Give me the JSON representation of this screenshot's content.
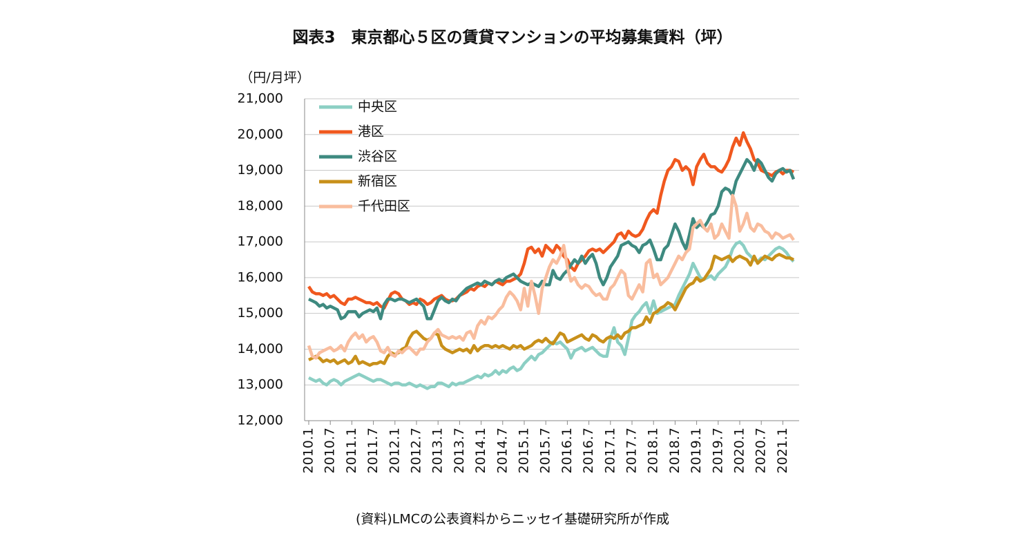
{
  "chart_data": {
    "type": "line",
    "title": "図表3　東京都心５区の賃貸マンションの平均募集賃料（坪）",
    "y_label": "（円/月坪）",
    "source": "(資料)LMCの公表資料からニッセイ基礎研究所が作成",
    "categories": [
      "2010.1",
      null,
      null,
      null,
      null,
      null,
      "2010.7",
      null,
      null,
      null,
      null,
      null,
      "2011.1",
      null,
      null,
      null,
      null,
      null,
      "2011.7",
      null,
      null,
      null,
      null,
      null,
      "2012.1",
      null,
      null,
      null,
      null,
      null,
      "2012.7",
      null,
      null,
      null,
      null,
      null,
      "2013.1",
      null,
      null,
      null,
      null,
      null,
      "2013.7",
      null,
      null,
      null,
      null,
      null,
      "2014.1",
      null,
      null,
      null,
      null,
      null,
      "2014.7",
      null,
      null,
      null,
      null,
      null,
      "2015.1",
      null,
      null,
      null,
      null,
      null,
      "2015.7",
      null,
      null,
      null,
      null,
      null,
      "2016.1",
      null,
      null,
      null,
      null,
      null,
      "2016.7",
      null,
      null,
      null,
      null,
      null,
      "2017.1",
      null,
      null,
      null,
      null,
      null,
      "2017.7",
      null,
      null,
      null,
      null,
      null,
      "2018.1",
      null,
      null,
      null,
      null,
      null,
      "2018.7",
      null,
      null,
      null,
      null,
      null,
      "2019.1",
      null,
      null,
      null,
      null,
      null,
      "2019.7",
      null,
      null,
      null,
      null,
      null,
      "2020.1",
      null,
      null,
      null,
      null,
      null,
      "2020.7",
      null,
      null,
      null,
      null,
      null,
      "2021.1",
      null,
      null,
      null
    ],
    "series": [
      {
        "name": "中央区",
        "color": "#8ccfc4",
        "values": [
          13200,
          13150,
          13100,
          13150,
          13050,
          13000,
          13100,
          13150,
          13100,
          13000,
          13100,
          13150,
          13200,
          13250,
          13300,
          13250,
          13200,
          13150,
          13100,
          13150,
          13150,
          13100,
          13050,
          13000,
          13050,
          13050,
          13000,
          13000,
          13050,
          13000,
          12950,
          13000,
          12950,
          12900,
          12950,
          12950,
          13050,
          13050,
          13000,
          12950,
          13050,
          13000,
          13050,
          13050,
          13100,
          13150,
          13200,
          13250,
          13200,
          13300,
          13250,
          13300,
          13400,
          13300,
          13400,
          13350,
          13450,
          13500,
          13400,
          13450,
          13600,
          13700,
          13800,
          13700,
          13850,
          13900,
          14000,
          14100,
          14200,
          14150,
          14200,
          14100,
          14000,
          13750,
          13950,
          14000,
          14050,
          13950,
          14000,
          14050,
          13950,
          13850,
          13800,
          13800,
          14300,
          14600,
          14200,
          14100,
          13850,
          14300,
          14800,
          14950,
          15050,
          15200,
          15300,
          15000,
          15350,
          15000,
          15050,
          15100,
          15150,
          15200,
          15250,
          15500,
          15700,
          15900,
          16100,
          16400,
          16200,
          16000,
          15950,
          16000,
          16050,
          15950,
          16100,
          16200,
          16300,
          16500,
          16800,
          16950,
          17000,
          16900,
          16700,
          16600,
          16500,
          16450,
          16550,
          16500,
          16600,
          16700,
          16800,
          16850,
          16800,
          16700,
          16550,
          16450
        ]
      },
      {
        "name": "港区",
        "color": "#f0581e",
        "values": [
          15750,
          15600,
          15550,
          15550,
          15500,
          15550,
          15450,
          15500,
          15400,
          15300,
          15250,
          15400,
          15400,
          15450,
          15400,
          15350,
          15300,
          15300,
          15250,
          15300,
          15200,
          15150,
          15350,
          15550,
          15600,
          15550,
          15400,
          15350,
          15250,
          15300,
          15250,
          15400,
          15350,
          15250,
          15300,
          15400,
          15450,
          15500,
          15400,
          15350,
          15350,
          15400,
          15500,
          15550,
          15600,
          15700,
          15650,
          15750,
          15800,
          15750,
          15850,
          15800,
          15900,
          15850,
          15800,
          15900,
          15900,
          15950,
          16000,
          16100,
          16400,
          16800,
          16850,
          16700,
          16800,
          16600,
          16900,
          16800,
          16700,
          16900,
          16800,
          16600,
          16500,
          16300,
          16200,
          16400,
          16500,
          16600,
          16750,
          16800,
          16750,
          16800,
          16700,
          16800,
          16900,
          17000,
          17200,
          17250,
          17100,
          17300,
          17200,
          17150,
          17200,
          17350,
          17600,
          17800,
          17900,
          17800,
          18300,
          18700,
          19000,
          19100,
          19300,
          19250,
          19000,
          19100,
          19000,
          18600,
          19100,
          19300,
          19450,
          19200,
          19100,
          19100,
          19000,
          18950,
          19100,
          19300,
          19650,
          19900,
          19700,
          20050,
          19800,
          19600,
          19300,
          19200,
          19000,
          18950,
          18900,
          18850,
          18950,
          19000,
          18900,
          19000,
          19000,
          18950
        ]
      },
      {
        "name": "渋谷区",
        "color": "#3e8a80",
        "values": [
          15400,
          15350,
          15300,
          15200,
          15250,
          15150,
          15200,
          15150,
          15100,
          14850,
          14900,
          15050,
          15050,
          15050,
          14900,
          15000,
          15050,
          15100,
          15050,
          15150,
          14850,
          15250,
          15400,
          15400,
          15350,
          15400,
          15400,
          15350,
          15300,
          15350,
          15400,
          15300,
          15200,
          14850,
          14850,
          15100,
          15350,
          15450,
          15350,
          15300,
          15400,
          15350,
          15500,
          15600,
          15700,
          15750,
          15800,
          15850,
          15800,
          15900,
          15850,
          15800,
          15900,
          15950,
          15900,
          16000,
          16050,
          16100,
          16000,
          15900,
          15850,
          15800,
          15850,
          15800,
          15750,
          15900,
          15800,
          15800,
          16200,
          16000,
          15950,
          16100,
          16200,
          16350,
          16500,
          16400,
          16600,
          16400,
          16550,
          16650,
          16400,
          16000,
          15800,
          16000,
          16300,
          16450,
          16600,
          16900,
          16950,
          17000,
          16900,
          16850,
          16700,
          16900,
          16950,
          17050,
          16800,
          16500,
          16500,
          16800,
          16900,
          17200,
          17500,
          17300,
          17000,
          16800,
          17200,
          17650,
          17400,
          17500,
          17400,
          17550,
          17750,
          17800,
          18000,
          18400,
          18500,
          18450,
          18300,
          18700,
          18900,
          19100,
          19300,
          19200,
          19000,
          19300,
          19200,
          19000,
          18800,
          18700,
          18900,
          19000,
          19050,
          18950,
          19000,
          18750
        ]
      },
      {
        "name": "新宿区",
        "color": "#c8901a",
        "values": [
          13700,
          13750,
          13800,
          13750,
          13650,
          13700,
          13650,
          13700,
          13600,
          13650,
          13700,
          13600,
          13650,
          13800,
          13600,
          13650,
          13600,
          13550,
          13600,
          13600,
          13650,
          13600,
          13800,
          13900,
          13850,
          13900,
          14000,
          14050,
          14300,
          14450,
          14500,
          14400,
          14300,
          14250,
          14300,
          14450,
          14400,
          14100,
          14000,
          13950,
          13900,
          13950,
          14000,
          13950,
          14000,
          13900,
          14100,
          13950,
          14050,
          14100,
          14100,
          14050,
          14100,
          14050,
          14100,
          14050,
          14000,
          14100,
          14050,
          14100,
          14000,
          14050,
          14100,
          14200,
          14250,
          14200,
          14300,
          14200,
          14150,
          14300,
          14450,
          14400,
          14200,
          14250,
          14300,
          14350,
          14400,
          14300,
          14250,
          14400,
          14350,
          14250,
          14200,
          14300,
          14350,
          14300,
          14400,
          14300,
          14450,
          14500,
          14600,
          14600,
          14650,
          14700,
          14900,
          14750,
          15000,
          15050,
          15150,
          15200,
          15300,
          15250,
          15100,
          15300,
          15500,
          15700,
          15800,
          15850,
          16000,
          15900,
          15950,
          16100,
          16250,
          16600,
          16550,
          16500,
          16550,
          16600,
          16450,
          16550,
          16600,
          16550,
          16500,
          16350,
          16600,
          16400,
          16500,
          16600,
          16550,
          16500,
          16600,
          16650,
          16600,
          16550,
          16550,
          16500
        ]
      },
      {
        "name": "千代田区",
        "color": "#f9bd9e",
        "values": [
          14100,
          13800,
          13750,
          13900,
          13950,
          14000,
          14050,
          13950,
          14000,
          14100,
          13950,
          14200,
          14350,
          14450,
          14300,
          14400,
          14200,
          14300,
          14350,
          14200,
          13950,
          13900,
          14050,
          13850,
          13800,
          13950,
          13900,
          14000,
          14050,
          13950,
          13850,
          14000,
          14000,
          14200,
          14300,
          14450,
          14550,
          14400,
          14350,
          14300,
          14350,
          14300,
          14350,
          14250,
          14450,
          14500,
          14300,
          14650,
          14800,
          14700,
          14900,
          14850,
          14950,
          15100,
          15200,
          15450,
          15600,
          15500,
          15350,
          15100,
          15700,
          15200,
          15900,
          15500,
          15000,
          15700,
          16000,
          16300,
          16500,
          16400,
          16600,
          16900,
          16300,
          15900,
          16000,
          15800,
          15700,
          15800,
          15750,
          15600,
          15500,
          15550,
          15400,
          15400,
          15700,
          15800,
          16000,
          16200,
          16100,
          15500,
          15400,
          15600,
          15800,
          15600,
          16400,
          16500,
          16000,
          16100,
          15800,
          15900,
          16000,
          16200,
          16400,
          16600,
          16500,
          16700,
          16800,
          17400,
          17500,
          17600,
          17400,
          17300,
          17500,
          17100,
          17200,
          17500,
          17300,
          17100,
          18300,
          18000,
          17300,
          17500,
          17800,
          17400,
          17300,
          17500,
          17450,
          17300,
          17250,
          17100,
          17250,
          17200,
          17100,
          17150,
          17200,
          17050
        ]
      }
    ],
    "ylim": [
      12000,
      21000
    ],
    "yticks": [
      {
        "value": 12000,
        "label": "12,000"
      },
      {
        "value": 13000,
        "label": "13,000"
      },
      {
        "value": 14000,
        "label": "14,000"
      },
      {
        "value": 15000,
        "label": "15,000"
      },
      {
        "value": 16000,
        "label": "16,000"
      },
      {
        "value": 17000,
        "label": "17,000"
      },
      {
        "value": 18000,
        "label": "18,000"
      },
      {
        "value": 19000,
        "label": "19,000"
      },
      {
        "value": 20000,
        "label": "20,000"
      },
      {
        "value": 21000,
        "label": "21,000"
      }
    ],
    "grid": true,
    "legend": "upper-left"
  }
}
